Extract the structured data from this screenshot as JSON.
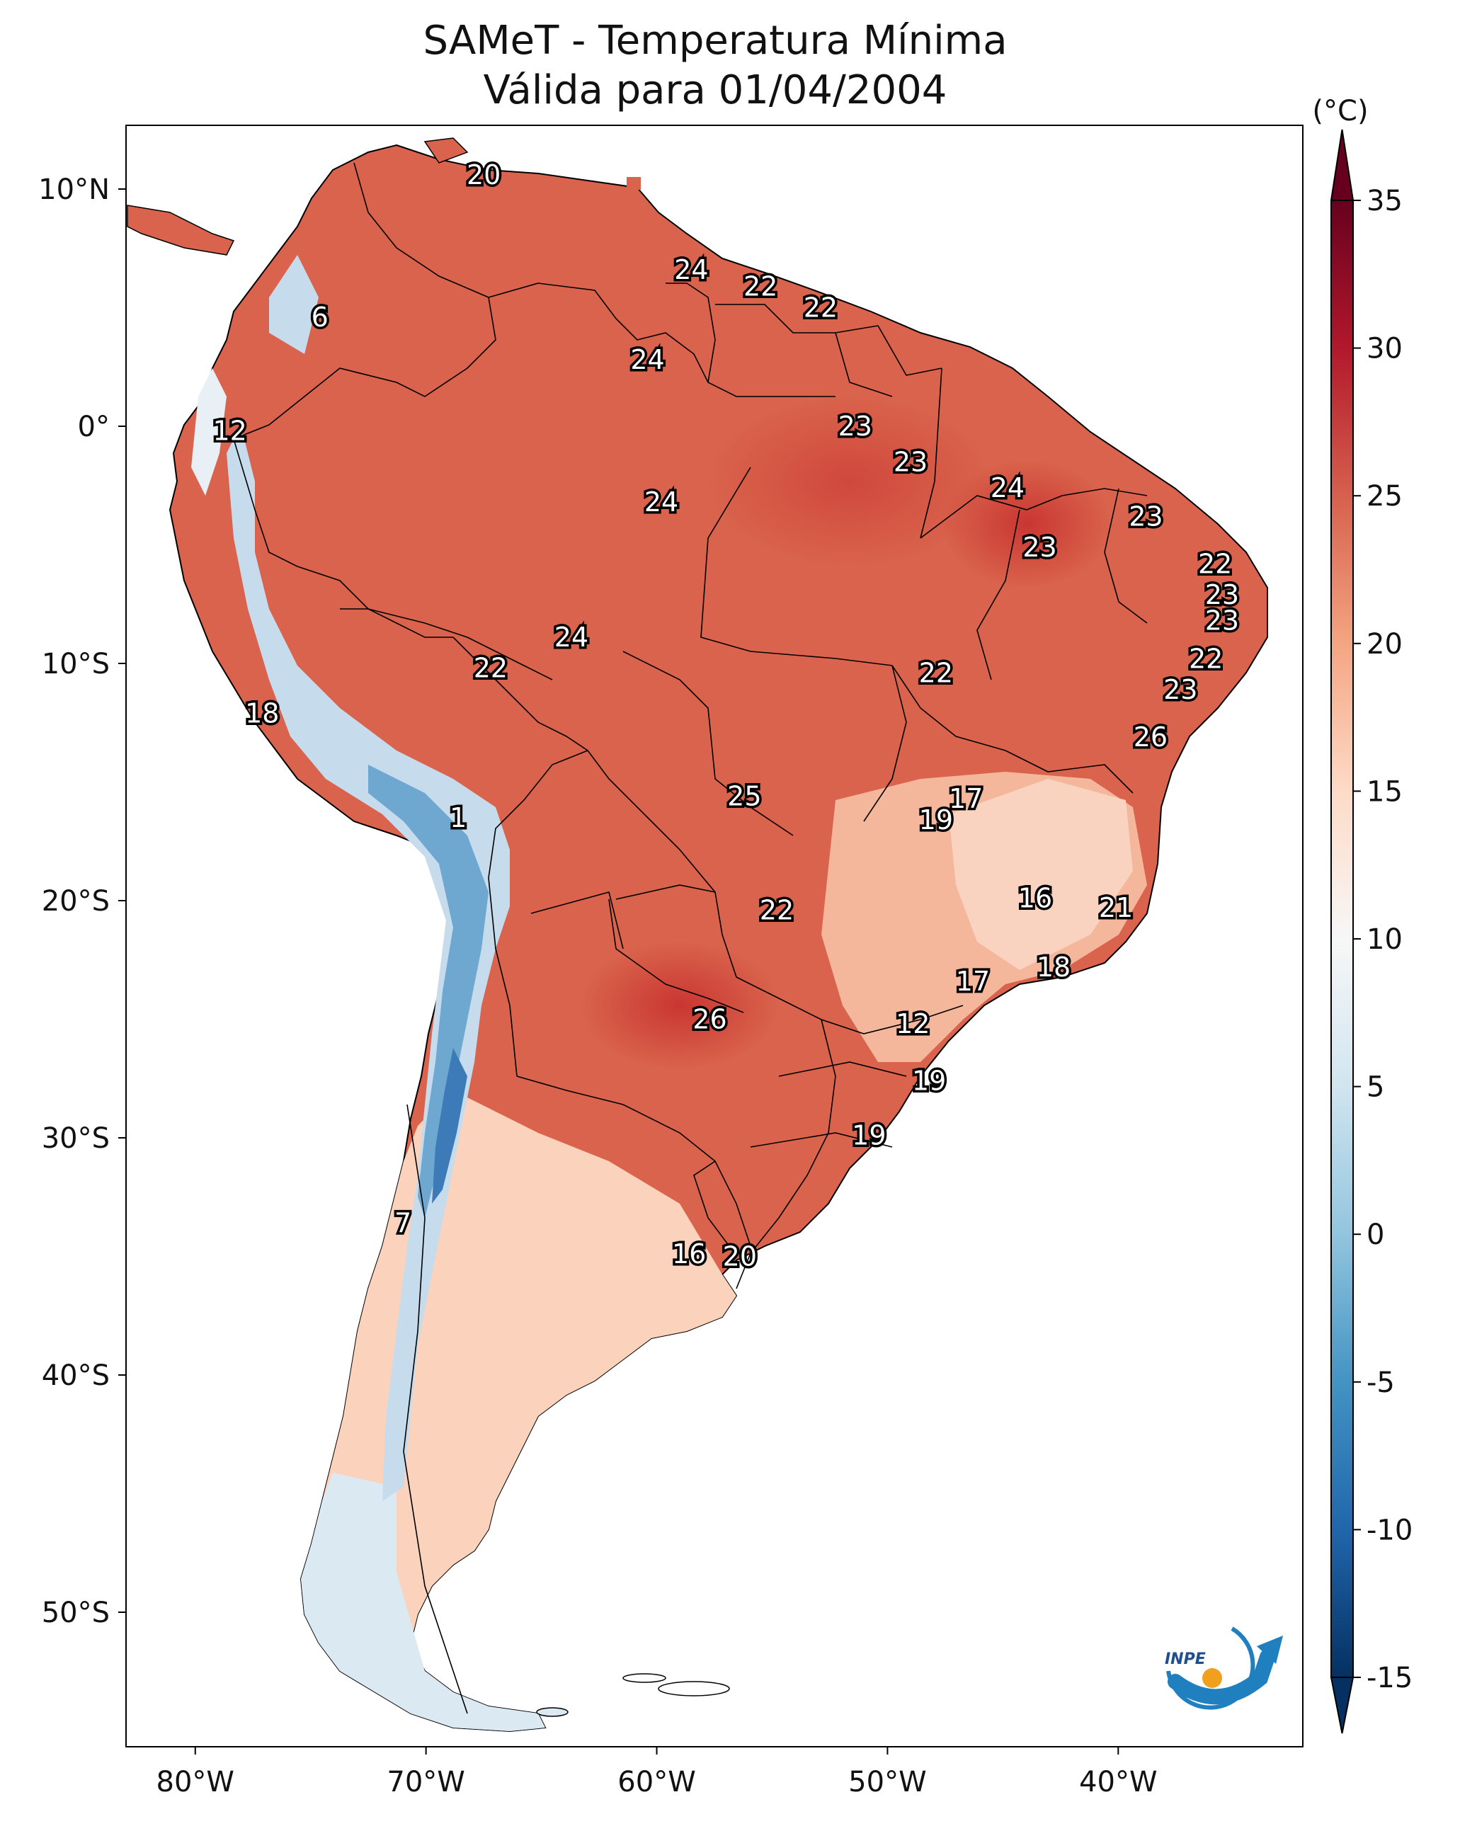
{
  "title_line1": "SAMeT - Temperatura Mínima",
  "title_line2": "Válida para 01/04/2004",
  "colorbar": {
    "unit": "(°C)",
    "ticks": [
      "35",
      "30",
      "25",
      "20",
      "15",
      "10",
      "5",
      "0",
      "-5",
      "-10",
      "-15"
    ],
    "colors_top_to_bottom": [
      "#67001f",
      "#b2182b",
      "#d6604d",
      "#f4a582",
      "#fddbc7",
      "#f7f7f7",
      "#d1e5f0",
      "#92c5de",
      "#4393c3",
      "#2166ac",
      "#053061"
    ]
  },
  "axes": {
    "lat_ticks": [
      "10°N",
      "0°",
      "10°S",
      "20°S",
      "30°S",
      "40°S",
      "50°S"
    ],
    "lon_ticks": [
      "80°W",
      "70°W",
      "60°W",
      "50°W",
      "40°W"
    ]
  },
  "map_labels": [
    {
      "text": "20",
      "lon": -67.5,
      "lat": 10.6
    },
    {
      "text": "6",
      "lon": -74.6,
      "lat": 4.6
    },
    {
      "text": "24",
      "lon": -58.5,
      "lat": 6.6
    },
    {
      "text": "22",
      "lon": -55.5,
      "lat": 5.9
    },
    {
      "text": "22",
      "lon": -52.9,
      "lat": 5.0
    },
    {
      "text": "24",
      "lon": -60.4,
      "lat": 2.8
    },
    {
      "text": "12",
      "lon": -78.5,
      "lat": -0.2
    },
    {
      "text": "23",
      "lon": -51.4,
      "lat": 0.0
    },
    {
      "text": "23",
      "lon": -49.0,
      "lat": -1.5
    },
    {
      "text": "24",
      "lon": -59.8,
      "lat": -3.2
    },
    {
      "text": "24",
      "lon": -44.8,
      "lat": -2.6
    },
    {
      "text": "23",
      "lon": -38.8,
      "lat": -3.8
    },
    {
      "text": "23",
      "lon": -43.4,
      "lat": -5.1
    },
    {
      "text": "22",
      "lon": -35.8,
      "lat": -5.8
    },
    {
      "text": "23",
      "lon": -35.5,
      "lat": -7.1
    },
    {
      "text": "23",
      "lon": -35.5,
      "lat": -8.2
    },
    {
      "text": "24",
      "lon": -63.7,
      "lat": -8.9
    },
    {
      "text": "22",
      "lon": -67.2,
      "lat": -10.2
    },
    {
      "text": "22",
      "lon": -47.9,
      "lat": -10.4
    },
    {
      "text": "22",
      "lon": -36.2,
      "lat": -9.8
    },
    {
      "text": "23",
      "lon": -37.3,
      "lat": -11.1
    },
    {
      "text": "18",
      "lon": -77.1,
      "lat": -12.1
    },
    {
      "text": "26",
      "lon": -38.6,
      "lat": -13.1
    },
    {
      "text": "25",
      "lon": -56.2,
      "lat": -15.6
    },
    {
      "text": "17",
      "lon": -46.6,
      "lat": -15.7
    },
    {
      "text": "19",
      "lon": -47.9,
      "lat": -16.6
    },
    {
      "text": "1",
      "lon": -68.6,
      "lat": -16.5
    },
    {
      "text": "16",
      "lon": -43.6,
      "lat": -19.9
    },
    {
      "text": "22",
      "lon": -54.8,
      "lat": -20.4
    },
    {
      "text": "21",
      "lon": -40.1,
      "lat": -20.3
    },
    {
      "text": "18",
      "lon": -42.8,
      "lat": -22.8
    },
    {
      "text": "17",
      "lon": -46.3,
      "lat": -23.4
    },
    {
      "text": "26",
      "lon": -57.7,
      "lat": -25.0
    },
    {
      "text": "12",
      "lon": -48.9,
      "lat": -25.2
    },
    {
      "text": "19",
      "lon": -48.2,
      "lat": -27.6
    },
    {
      "text": "19",
      "lon": -50.8,
      "lat": -29.9
    },
    {
      "text": "7",
      "lon": -71.0,
      "lat": -33.6
    },
    {
      "text": "16",
      "lon": -58.6,
      "lat": -34.9
    },
    {
      "text": "20",
      "lon": -56.4,
      "lat": -35.0
    }
  ],
  "logo_text": "INPE"
}
